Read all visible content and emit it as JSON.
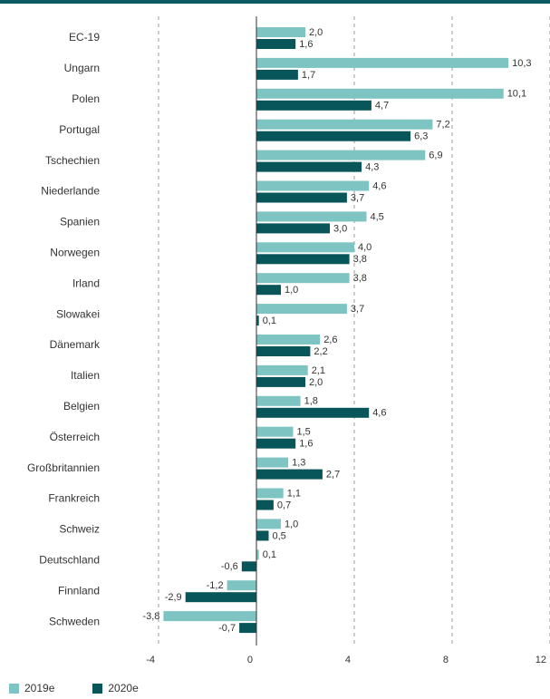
{
  "colors": {
    "series_2019": "#7ec4c3",
    "series_2020": "#08555a",
    "top_rule": "#0c5a63",
    "gridline": "#9a9a9a",
    "axis": "#333333"
  },
  "chart_data": {
    "type": "bar",
    "orientation": "horizontal",
    "title": "",
    "xlabel": "",
    "ylabel": "",
    "categories": [
      "EC-19",
      "Ungarn",
      "Polen",
      "Portugal",
      "Tschechien",
      "Niederlande",
      "Spanien",
      "Norwegen",
      "Irland",
      "Slowakei",
      "Dänemark",
      "Italien",
      "Belgien",
      "Österreich",
      "Großbritannien",
      "Frankreich",
      "Schweiz",
      "Deutschland",
      "Finnland",
      "Schweden"
    ],
    "series": [
      {
        "name": "2019e",
        "values": [
          2.0,
          10.3,
          10.1,
          7.2,
          6.9,
          4.6,
          4.5,
          4.0,
          3.8,
          3.7,
          2.6,
          2.1,
          1.8,
          1.5,
          1.3,
          1.1,
          1.0,
          0.1,
          -1.2,
          -3.8
        ],
        "labels": [
          "2,0",
          "10,3",
          "10,1",
          "7,2",
          "6,9",
          "4,6",
          "4,5",
          "4,0",
          "3,8",
          "3,7",
          "2,6",
          "2,1",
          "1,8",
          "1,5",
          "1,3",
          "1,1",
          "1,0",
          "0,1",
          "-1,2",
          "-3,8"
        ]
      },
      {
        "name": "2020e",
        "values": [
          1.6,
          1.7,
          4.7,
          6.3,
          4.3,
          3.7,
          3.0,
          3.8,
          1.0,
          0.1,
          2.2,
          2.0,
          4.6,
          1.6,
          2.7,
          0.7,
          0.5,
          -0.6,
          -2.9,
          -0.7
        ],
        "labels": [
          "1,6",
          "1,7",
          "4,7",
          "6,3",
          "4,3",
          "3,7",
          "3,0",
          "3,8",
          "1,0",
          "0,1",
          "2,2",
          "2,0",
          "4,6",
          "1,6",
          "2,7",
          "0,7",
          "0,5",
          "-0,6",
          "-2,9",
          "-0,7"
        ]
      }
    ],
    "x_ticks": [
      -4,
      0,
      4,
      8,
      12
    ],
    "x_tick_labels": [
      "-4",
      "0",
      "4",
      "8",
      "12"
    ],
    "xlim": [
      -4,
      12
    ],
    "grid": "dashed vertical at -4, 4, 8, 12",
    "legend_position": "bottom-left"
  },
  "legend": {
    "items": [
      "2019e",
      "2020e"
    ]
  }
}
